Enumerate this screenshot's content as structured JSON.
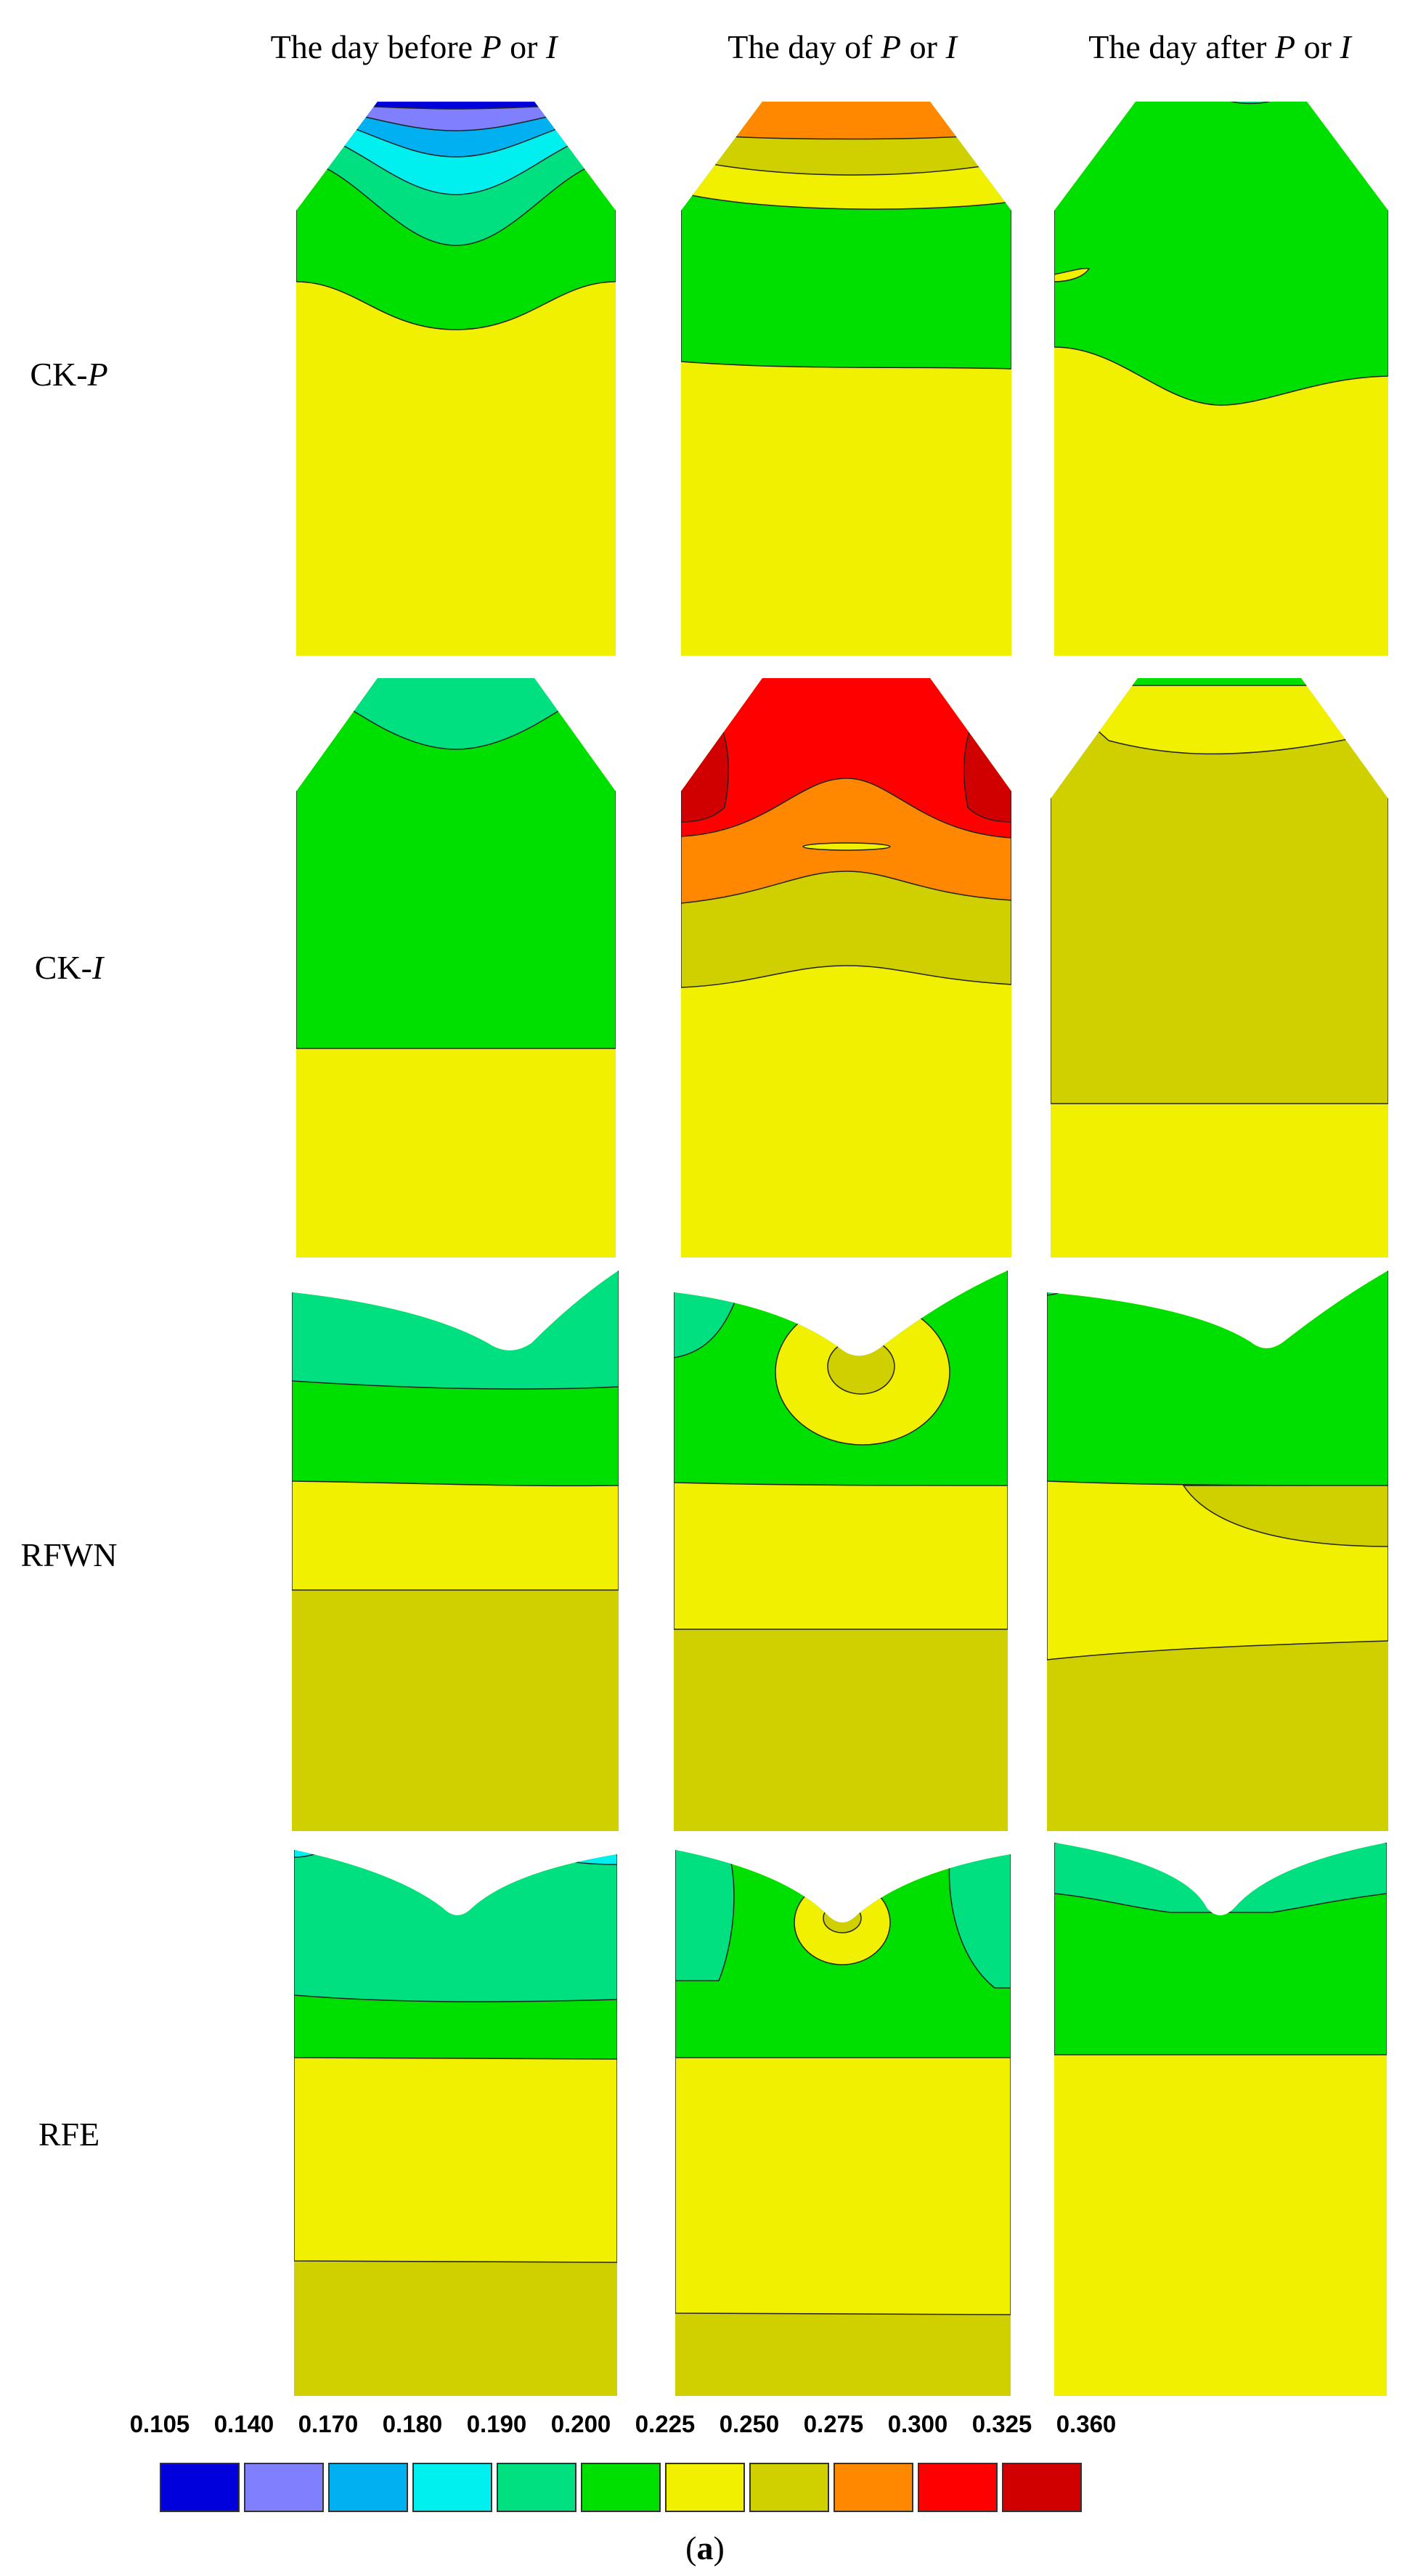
{
  "columns": {
    "c1": {
      "prefix": "The day before ",
      "p": "P",
      "mid": " or ",
      "i": "I"
    },
    "c2": {
      "prefix": "The day of ",
      "p": "P",
      "mid": " or ",
      "i": "I"
    },
    "c3": {
      "prefix": "The day after ",
      "p": "P",
      "mid": " or ",
      "i": "I"
    }
  },
  "rows": {
    "r1": {
      "prefix": "CK-",
      "var": "P"
    },
    "r2": {
      "prefix": "CK-",
      "var": "I"
    },
    "r3": {
      "label": "RFWN"
    },
    "r4": {
      "label": "RFE"
    }
  },
  "legend": {
    "values": [
      "0.105",
      "0.140",
      "0.170",
      "0.180",
      "0.190",
      "0.200",
      "0.225",
      "0.250",
      "0.275",
      "0.300",
      "0.325",
      "0.360"
    ],
    "colors": [
      "#0000dd",
      "#8080ff",
      "#00b0f0",
      "#00f0f0",
      "#00e080",
      "#00e000",
      "#f0f000",
      "#d0d000",
      "#ff8800",
      "#ff0000",
      "#d00000"
    ]
  },
  "caption": {
    "open": "(",
    "letter": "a",
    "close": ")"
  }
}
